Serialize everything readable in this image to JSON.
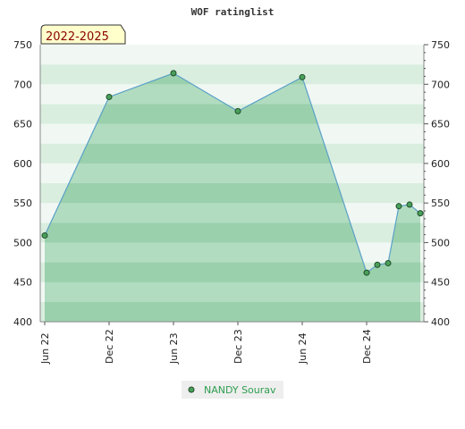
{
  "chart_data": {
    "type": "area",
    "title": "WOF ratinglist",
    "period_badge": "2022-2025",
    "xlabel": "",
    "ylabel": "",
    "ylim": [
      400,
      750
    ],
    "y_ticks": [
      400,
      450,
      500,
      550,
      600,
      650,
      700,
      750
    ],
    "x_ticks": [
      "Jun 22",
      "Dec 22",
      "Jun 23",
      "Dec 23",
      "Jun 24",
      "Dec 24"
    ],
    "grid": true,
    "legend_position": "bottom-center",
    "series": [
      {
        "name": "NANDY Sourav",
        "x": [
          "2022-06",
          "2022-12",
          "2023-06",
          "2023-12",
          "2024-06",
          "2024-12",
          "2025-01",
          "2025-02",
          "2025-03",
          "2025-04",
          "2025-05"
        ],
        "values": [
          509,
          684,
          714,
          666,
          709,
          462,
          472,
          474,
          546,
          548,
          537
        ]
      }
    ],
    "colors": {
      "fill": "#7cc596",
      "line": "#5aa0c8",
      "marker": "#4aa05a",
      "badge_bg": "#ffffcc",
      "legend_bg": "#eeeeee"
    }
  }
}
